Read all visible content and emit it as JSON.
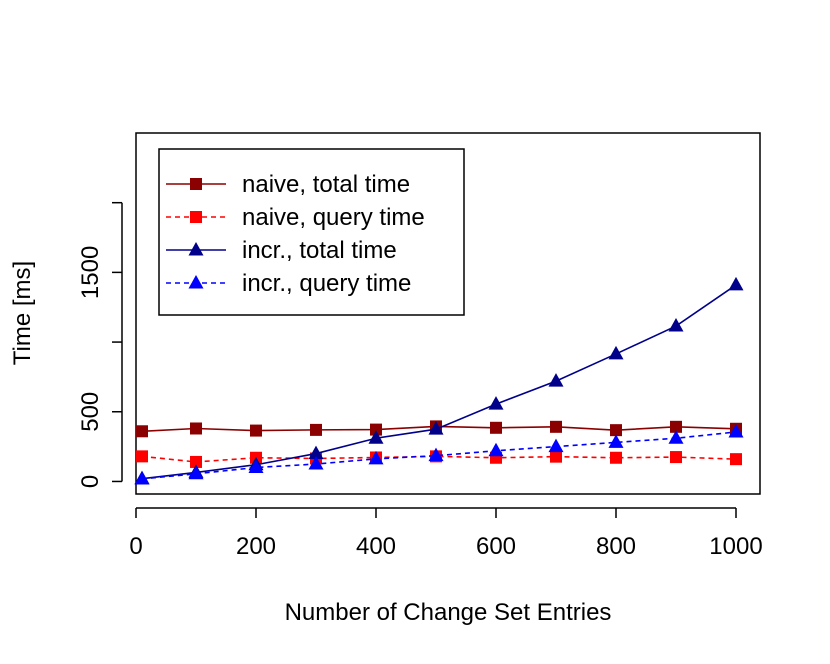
{
  "chart_data": {
    "type": "line",
    "title": "",
    "xlabel": "Number of Change Set Entries",
    "ylabel": "Time [ms]",
    "xlim": [
      0,
      1040
    ],
    "ylim": [
      -90,
      2500
    ],
    "x_ticks": [
      0,
      200,
      400,
      600,
      800,
      1000
    ],
    "x_tick_labels": [
      "0",
      "200",
      "400",
      "600",
      "800",
      "1000"
    ],
    "y_ticks": [
      0,
      500,
      1000,
      1500,
      2000
    ],
    "y_tick_labels": [
      "0",
      "500",
      "",
      "1500",
      ""
    ],
    "legend_position": "top-left",
    "grid": false,
    "x": [
      10,
      100,
      200,
      300,
      400,
      500,
      600,
      700,
      800,
      900,
      1000
    ],
    "series": [
      {
        "name": "naive, total time",
        "color": "#8b0000",
        "marker": "square",
        "dash": "solid",
        "values": [
          360,
          380,
          365,
          370,
          372,
          395,
          385,
          392,
          368,
          392,
          378
        ]
      },
      {
        "name": "naive, query time",
        "color": "#ff0000",
        "marker": "square",
        "dash": "dashed",
        "values": [
          180,
          140,
          170,
          165,
          172,
          180,
          170,
          178,
          170,
          175,
          160
        ]
      },
      {
        "name": "incr., total time",
        "color": "#00008b",
        "marker": "triangle",
        "dash": "solid",
        "values": [
          20,
          65,
          120,
          200,
          310,
          375,
          555,
          720,
          915,
          1115,
          1410
        ]
      },
      {
        "name": "incr., query time",
        "color": "#0000ff",
        "marker": "triangle",
        "dash": "dashed",
        "values": [
          18,
          55,
          100,
          125,
          162,
          185,
          220,
          250,
          280,
          310,
          355
        ]
      }
    ]
  }
}
